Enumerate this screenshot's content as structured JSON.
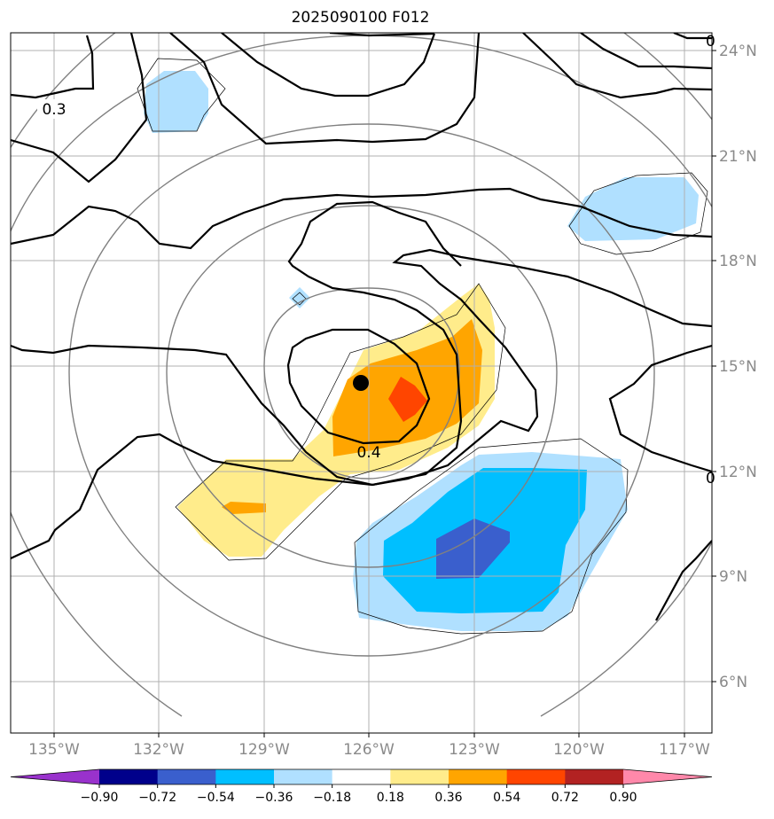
{
  "title": "2025090100 F012",
  "lat_labels": [
    "24°N",
    "21°N",
    "18°N",
    "15°N",
    "12°N",
    "9°N",
    "6°N"
  ],
  "lon_labels": [
    "135°W",
    "132°W",
    "129°W",
    "126°W",
    "123°W",
    "120°W",
    "117°W"
  ],
  "contour_labels": [
    "0.3",
    "0.4",
    "0",
    "0"
  ],
  "colorbar": {
    "tick_labels": [
      "−0.90",
      "−0.72",
      "−0.54",
      "−0.36",
      "−0.18",
      "0.18",
      "0.36",
      "0.54",
      "0.72",
      "0.90"
    ],
    "colors": [
      "#9932cc",
      "#00008b",
      "#3a5fcd",
      "#00bfff",
      "#b0e0ff",
      "#ffffff",
      "#ffec8b",
      "#ffa500",
      "#ff4500",
      "#b22222",
      "#ff88aa"
    ]
  },
  "center_marker_color": "#000000"
}
